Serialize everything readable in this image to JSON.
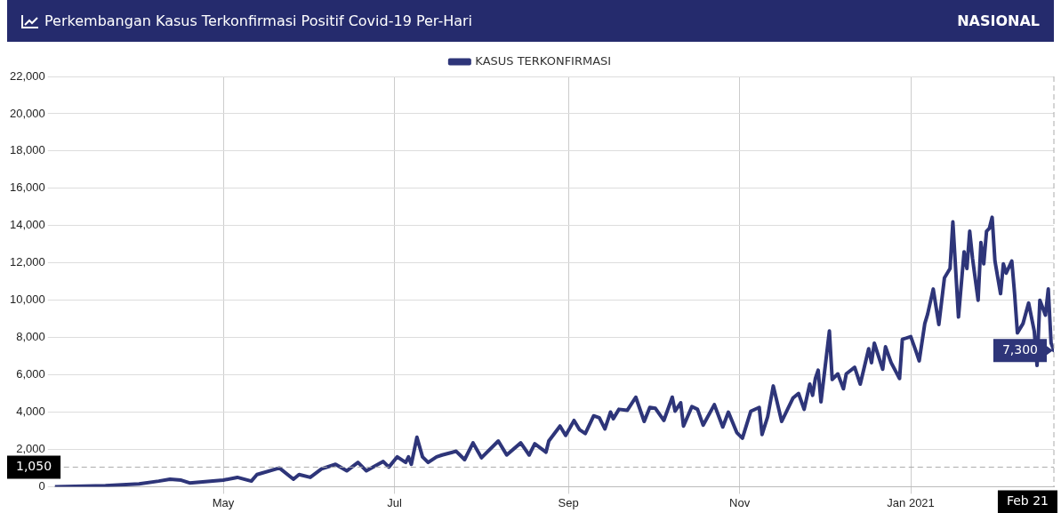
{
  "chart_data": {
    "type": "line",
    "title": "Perkembangan Kasus Terkonfirmasi Positif Covid-19 Per-Hari",
    "subtitle": "NASIONAL",
    "legend": "top",
    "grid": true,
    "marker": "none",
    "line_style": "solid",
    "xlim": [
      "2020-03-02",
      "2021-02-21"
    ],
    "xticks": [
      {
        "value": "2020-05-01",
        "label": "May"
      },
      {
        "value": "2020-07-01",
        "label": "Jul"
      },
      {
        "value": "2020-09-01",
        "label": "Sep"
      },
      {
        "value": "2020-11-01",
        "label": "Nov"
      },
      {
        "value": "2021-01-01",
        "label": "Jan 2021"
      }
    ],
    "ylim": [
      0,
      22000
    ],
    "yticks": [
      0,
      {
        "value": 2000,
        "label": "2,000"
      },
      {
        "value": 4000,
        "label": "4,000"
      },
      {
        "value": 6000,
        "label": "6,000"
      },
      {
        "value": 8000,
        "label": "8,000"
      },
      {
        "value": 10000,
        "label": "10,000"
      },
      {
        "value": 12000,
        "label": "12,000"
      },
      {
        "value": 14000,
        "label": "14,000"
      },
      {
        "value": 16000,
        "label": "16,000"
      },
      {
        "value": 18000,
        "label": "18,000"
      },
      {
        "value": 20000,
        "label": "20,000"
      },
      {
        "value": 22000,
        "label": "22,000"
      }
    ],
    "ref_lines": [
      {
        "axis": "y",
        "value": 1050,
        "label": "1,050",
        "line_style": "dashed",
        "color": "#aaaaaa"
      },
      {
        "axis": "x",
        "value": "2021-02-21",
        "label": "Feb 21",
        "line_style": "dashed",
        "color": "#aaaaaa"
      }
    ],
    "annotations": [
      {
        "text": "7,300",
        "x": "2021-02-21",
        "y": 7300
      }
    ],
    "series": [
      {
        "name": "KASUS TERKONFIRMASI",
        "color": "#2e3579",
        "x": [
          "2020-03-02",
          "2020-03-20",
          "2020-04-01",
          "2020-04-08",
          "2020-04-12",
          "2020-04-16",
          "2020-04-19",
          "2020-05-01",
          "2020-05-06",
          "2020-05-11",
          "2020-05-13",
          "2020-05-21",
          "2020-05-26",
          "2020-05-28",
          "2020-06-01",
          "2020-06-05",
          "2020-06-10",
          "2020-06-14",
          "2020-06-18",
          "2020-06-21",
          "2020-06-27",
          "2020-06-29",
          "2020-07-02",
          "2020-07-05",
          "2020-07-06",
          "2020-07-07",
          "2020-07-09",
          "2020-07-11",
          "2020-07-13",
          "2020-07-16",
          "2020-07-18",
          "2020-07-23",
          "2020-07-26",
          "2020-07-29",
          "2020-08-01",
          "2020-08-07",
          "2020-08-10",
          "2020-08-15",
          "2020-08-18",
          "2020-08-20",
          "2020-08-24",
          "2020-08-25",
          "2020-08-29",
          "2020-08-31",
          "2020-09-03",
          "2020-09-05",
          "2020-09-07",
          "2020-09-10",
          "2020-09-12",
          "2020-09-14",
          "2020-09-16",
          "2020-09-17",
          "2020-09-19",
          "2020-09-22",
          "2020-09-25",
          "2020-09-28",
          "2020-09-30",
          "2020-10-02",
          "2020-10-05",
          "2020-10-08",
          "2020-10-09",
          "2020-10-11",
          "2020-10-12",
          "2020-10-15",
          "2020-10-17",
          "2020-10-19",
          "2020-10-23",
          "2020-10-26",
          "2020-10-28",
          "2020-10-31",
          "2020-11-02",
          "2020-11-05",
          "2020-11-08",
          "2020-11-09",
          "2020-11-11",
          "2020-11-13",
          "2020-11-16",
          "2020-11-20",
          "2020-11-22",
          "2020-11-24",
          "2020-11-26",
          "2020-11-27",
          "2020-11-28",
          "2020-11-29",
          "2020-11-30",
          "2020-12-03",
          "2020-12-04",
          "2020-12-06",
          "2020-12-08",
          "2020-12-09",
          "2020-12-12",
          "2020-12-14",
          "2020-12-17",
          "2020-12-18",
          "2020-12-19",
          "2020-12-22",
          "2020-12-23",
          "2020-12-25",
          "2020-12-28",
          "2020-12-29",
          "2021-01-01",
          "2021-01-03",
          "2021-01-04",
          "2021-01-06",
          "2021-01-07",
          "2021-01-09",
          "2021-01-11",
          "2021-01-13",
          "2021-01-15",
          "2021-01-16",
          "2021-01-18",
          "2021-01-20",
          "2021-01-21",
          "2021-01-22",
          "2021-01-23",
          "2021-01-25",
          "2021-01-26",
          "2021-01-27",
          "2021-01-28",
          "2021-01-29",
          "2021-01-30",
          "2021-01-31",
          "2021-02-02",
          "2021-02-03",
          "2021-02-04",
          "2021-02-06",
          "2021-02-07",
          "2021-02-08",
          "2021-02-10",
          "2021-02-12",
          "2021-02-14",
          "2021-02-15",
          "2021-02-16",
          "2021-02-18",
          "2021-02-19",
          "2021-02-20",
          "2021-02-21"
        ],
        "values": [
          0,
          60,
          150,
          300,
          400,
          350,
          200,
          350,
          500,
          300,
          650,
          1000,
          400,
          650,
          500,
          950,
          1200,
          850,
          1300,
          850,
          1350,
          1050,
          1600,
          1300,
          1600,
          1200,
          2650,
          1600,
          1300,
          1600,
          1700,
          1900,
          1450,
          2350,
          1550,
          2450,
          1700,
          2350,
          1700,
          2300,
          1850,
          2450,
          3250,
          2750,
          3550,
          3050,
          2850,
          3800,
          3700,
          3100,
          4000,
          3650,
          4150,
          4100,
          4800,
          3500,
          4250,
          4200,
          3550,
          4800,
          4050,
          4500,
          3250,
          4300,
          4150,
          3300,
          4400,
          3200,
          4000,
          2900,
          2600,
          4050,
          4250,
          2800,
          3750,
          5400,
          3500,
          4750,
          5000,
          4150,
          5500,
          4900,
          5800,
          6250,
          4550,
          8350,
          5750,
          6050,
          5250,
          6050,
          6400,
          5500,
          7400,
          6650,
          7700,
          6300,
          7500,
          6650,
          5800,
          7900,
          8050,
          7200,
          6750,
          8750,
          9250,
          10600,
          8700,
          11200,
          11700,
          14200,
          9100,
          12600,
          11700,
          13700,
          12250,
          10000,
          13100,
          11950,
          13700,
          13850,
          14450,
          12100,
          10350,
          11950,
          11450,
          12100,
          10350,
          8250,
          8750,
          9850,
          8350,
          6500,
          10000,
          9200,
          10600,
          7700,
          7300
        ]
      }
    ]
  }
}
